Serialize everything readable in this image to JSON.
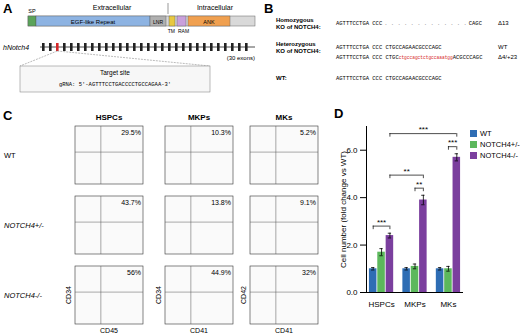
{
  "panel_a": {
    "label": "A",
    "regions": [
      "Extracellular",
      "Intracellular"
    ],
    "domains": [
      "SP",
      "EGF-like Repeat",
      "LNR",
      "TM",
      "RAM",
      "ANK"
    ],
    "gene": "hNotch4",
    "exon_count": 30,
    "exon_note": "(30 exons)",
    "target_label": "Target site",
    "grna": "gRNA: 5'-AGTTTCCTGACCCCTGCCAGAA-3'"
  },
  "panel_b": {
    "label": "B",
    "groups": [
      {
        "label": [
          "Homozygous",
          "KO of NOTCH4:"
        ],
        "alleles": [
          {
            "pre": "AGTTTCCTGA CCC",
            "gap": ". . . . . . . . . . . . .",
            "post": "CAGC",
            "tag": "Δ13"
          }
        ]
      },
      {
        "label": [
          "Heterozygous",
          "KO of NOTCH4:"
        ],
        "alleles": [
          {
            "pre": "AGTTTCCTGA CCC CTGCCAGAACGCCCAGC",
            "tag": "WT"
          },
          {
            "pre": "AGTTTCCTGA CCC CTGC",
            "inserted": "ctgccagctctgccaaatgg",
            "post": "ACGCCCAGC",
            "tag": "Δ4/+23"
          }
        ]
      },
      {
        "label": [
          "WT:"
        ],
        "alleles": [
          {
            "pre": "AGTTTCCTGA CCC CTGCCAGAACGCCCAGC"
          }
        ]
      }
    ]
  },
  "panel_c": {
    "label": "C",
    "columns": [
      "HSPCs",
      "MKPs",
      "MKs"
    ],
    "rows": [
      "WT",
      "NOTCH4+/-",
      "NOTCH4-/-"
    ],
    "gates": [
      [
        "29.5%",
        "10.3%",
        "5.2%"
      ],
      [
        "43.7%",
        "13.8%",
        "9.1%"
      ],
      [
        "56%",
        "44.9%",
        "32%"
      ]
    ],
    "y_axes": [
      "CD34",
      "CD34",
      "CD42"
    ],
    "x_axes": [
      "CD45",
      "CD41",
      "CD41"
    ]
  },
  "chart_data": {
    "label": "D",
    "type": "bar",
    "categories": [
      "HSPCs",
      "MKPs",
      "MKs"
    ],
    "series": [
      {
        "name": "WT",
        "color": "#2e6db4",
        "values": [
          1,
          1,
          1
        ],
        "errors": [
          0.05,
          0.05,
          0.05
        ]
      },
      {
        "name": "NOTCH4+/-",
        "color": "#5cb85c",
        "values": [
          1.7,
          1.1,
          1.0
        ],
        "errors": [
          0.15,
          0.1,
          0.1
        ]
      },
      {
        "name": "NOTCH4-/-",
        "color": "#7b3f9e",
        "values": [
          2.4,
          3.9,
          5.7
        ],
        "errors": [
          0.1,
          0.2,
          0.15
        ]
      }
    ],
    "ylabel": "Cell number (fold change vs WT)",
    "ylim": [
      0,
      7
    ],
    "yticks": [
      0,
      2,
      4,
      6
    ],
    "legend": "right",
    "significance": [
      {
        "from": [
          "HSPCs",
          "WT"
        ],
        "to": [
          "HSPCs",
          "NOTCH4-/-"
        ],
        "label": "***"
      },
      {
        "from": [
          "MKPs",
          "NOTCH4+/-"
        ],
        "to": [
          "MKPs",
          "NOTCH4-/-"
        ],
        "label": "**"
      },
      {
        "from": [
          "MKs",
          "NOTCH4+/-"
        ],
        "to": [
          "MKs",
          "NOTCH4-/-"
        ],
        "label": "***"
      },
      {
        "from": [
          "HSPCs",
          "NOTCH4-/-"
        ],
        "to": [
          "MKPs",
          "NOTCH4-/-"
        ],
        "label": "**"
      },
      {
        "from": [
          "HSPCs",
          "NOTCH4-/-"
        ],
        "to": [
          "MKs",
          "NOTCH4-/-"
        ],
        "label": "***"
      }
    ]
  }
}
